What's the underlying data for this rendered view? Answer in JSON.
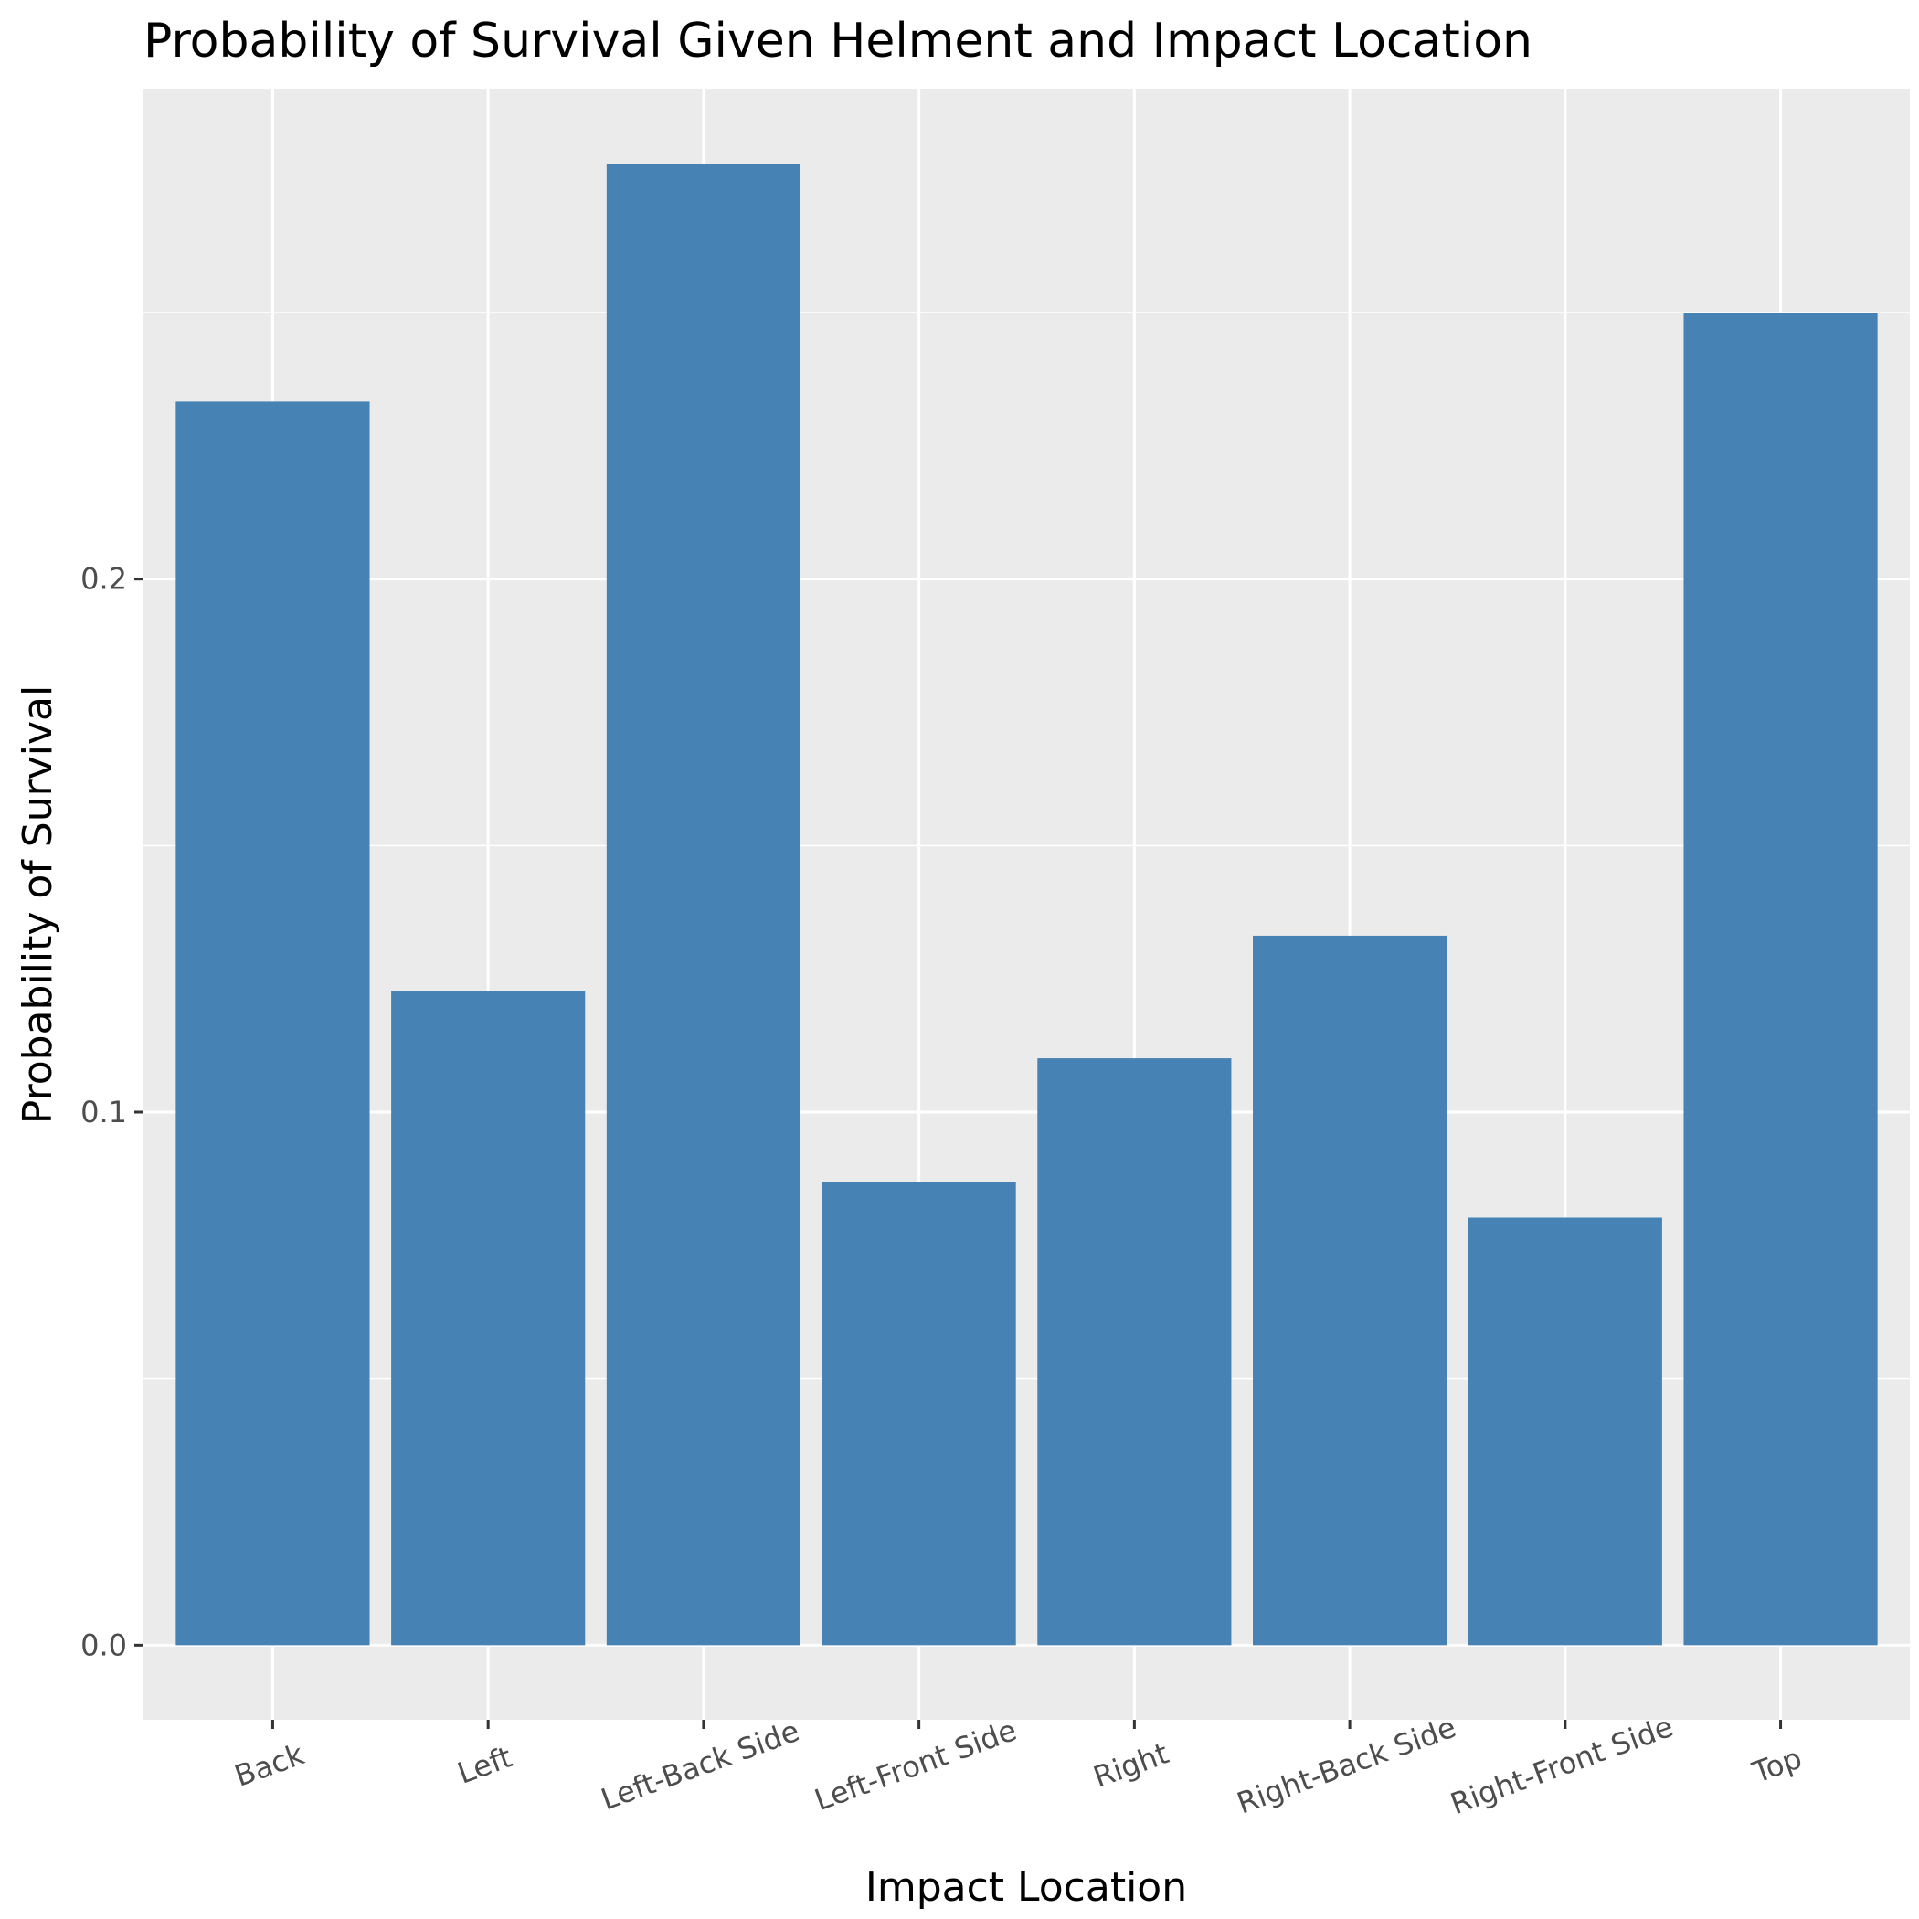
{
  "chart_data": {
    "type": "bar",
    "title": "Probability of Survival Given Helment and Impact Location",
    "xlabel": "Impact Location",
    "ylabel": "Probability of Survival",
    "categories": [
      "Back",
      "Left",
      "Left-Back Side",
      "Left-Front Side",
      "Right",
      "Right-Back Side",
      "Right-Front Side",
      "Top"
    ],
    "values": [
      0.2333,
      0.1228,
      0.2778,
      0.0868,
      0.1101,
      0.1331,
      0.0802,
      0.25
    ],
    "ylim": [
      -0.014,
      0.292
    ],
    "yticks": [
      0.0,
      0.1,
      0.2
    ],
    "ytick_labels": [
      "0.0",
      "0.1",
      "0.2"
    ],
    "grid": true,
    "legend": "none",
    "colors": {
      "bar": "#4682b4",
      "panel": "#ebebeb",
      "grid": "#ffffff",
      "tick": "#333333"
    }
  }
}
